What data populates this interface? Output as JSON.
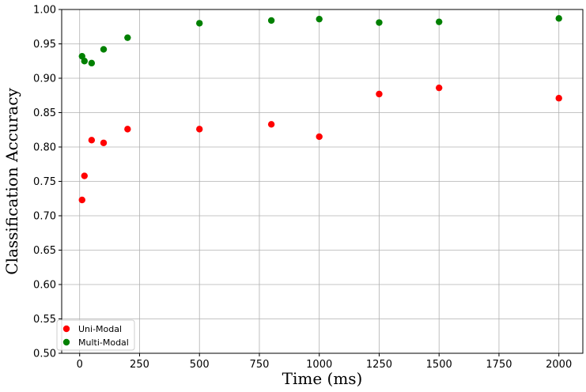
{
  "chart_data": {
    "type": "scatter",
    "title": "",
    "xlabel": "Time (ms)",
    "ylabel": "Classification Accuracy",
    "xlim": [
      -75,
      2100
    ],
    "ylim": [
      0.5,
      1.0
    ],
    "xticks": [
      0,
      250,
      500,
      750,
      1000,
      1250,
      1500,
      1750,
      2000
    ],
    "yticks": [
      0.5,
      0.55,
      0.6,
      0.65,
      0.7,
      0.75,
      0.8,
      0.85,
      0.9,
      0.95,
      1.0
    ],
    "grid": true,
    "legend": "lower-left",
    "series": [
      {
        "name": "Uni-Modal",
        "color": "#ff0000",
        "x": [
          10,
          20,
          50,
          100,
          200,
          500,
          800,
          1000,
          1250,
          1500,
          2000
        ],
        "y": [
          0.723,
          0.758,
          0.81,
          0.806,
          0.826,
          0.826,
          0.833,
          0.815,
          0.877,
          0.886,
          0.871
        ]
      },
      {
        "name": "Multi-Modal",
        "color": "#008000",
        "x": [
          10,
          20,
          50,
          100,
          200,
          500,
          800,
          1000,
          1250,
          1500,
          2000
        ],
        "y": [
          0.932,
          0.925,
          0.922,
          0.942,
          0.959,
          0.98,
          0.984,
          0.986,
          0.981,
          0.982,
          0.987
        ]
      }
    ]
  }
}
